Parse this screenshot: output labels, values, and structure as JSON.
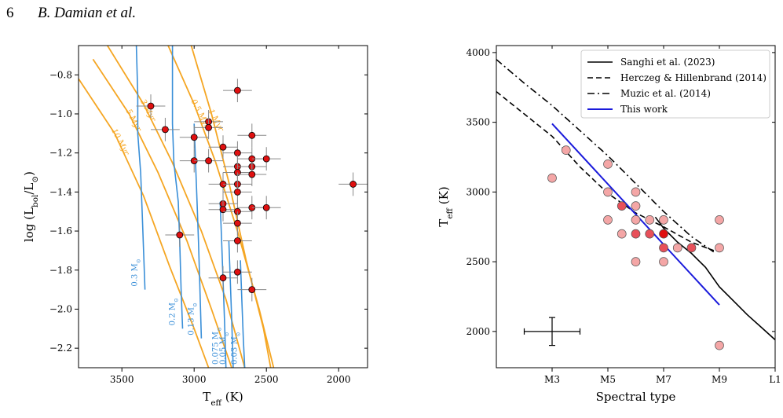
{
  "header": {
    "page_number": "6",
    "authors": "B. Damian et al."
  },
  "colors": {
    "isochrone": "#f5a623",
    "track": "#3a8fd8",
    "point": "#e01010",
    "point_light": "#f4a6a6",
    "point_mid": "#e8505a",
    "this_work": "#1a1adb"
  },
  "chart_data": [
    {
      "type": "scatter",
      "xlabel": "T_eff (K)",
      "ylabel": "log (L_bol/L_⊙)",
      "xlim": [
        3800,
        1800
      ],
      "ylim": [
        -2.3,
        -0.65
      ],
      "x_ticks": [
        3500,
        3000,
        2500,
        2000
      ],
      "y_ticks": [
        -0.8,
        -1.0,
        -1.2,
        -1.4,
        -1.6,
        -1.8,
        -2.0,
        -2.2
      ],
      "x_tick_labels": [
        "3500",
        "3000",
        "2500",
        "2000"
      ],
      "y_tick_labels": [
        "−0.8",
        "−1.0",
        "−1.2",
        "−1.4",
        "−1.6",
        "−1.8",
        "−2.0",
        "−2.2"
      ],
      "points": [
        {
          "x": 3300,
          "y": -0.96
        },
        {
          "x": 3200,
          "y": -1.08
        },
        {
          "x": 2700,
          "y": -0.88
        },
        {
          "x": 2900,
          "y": -1.04
        },
        {
          "x": 2900,
          "y": -1.07
        },
        {
          "x": 3000,
          "y": -1.12
        },
        {
          "x": 2800,
          "y": -1.17
        },
        {
          "x": 2700,
          "y": -1.2
        },
        {
          "x": 2600,
          "y": -1.11
        },
        {
          "x": 3000,
          "y": -1.24
        },
        {
          "x": 2900,
          "y": -1.24
        },
        {
          "x": 2700,
          "y": -1.27
        },
        {
          "x": 2700,
          "y": -1.3
        },
        {
          "x": 2600,
          "y": -1.27
        },
        {
          "x": 2600,
          "y": -1.23
        },
        {
          "x": 2500,
          "y": -1.23
        },
        {
          "x": 2600,
          "y": -1.31
        },
        {
          "x": 2800,
          "y": -1.36
        },
        {
          "x": 2700,
          "y": -1.36
        },
        {
          "x": 2700,
          "y": -1.4
        },
        {
          "x": 2800,
          "y": -1.46
        },
        {
          "x": 2800,
          "y": -1.49
        },
        {
          "x": 2700,
          "y": -1.5
        },
        {
          "x": 2600,
          "y": -1.48
        },
        {
          "x": 2500,
          "y": -1.48
        },
        {
          "x": 2700,
          "y": -1.56
        },
        {
          "x": 3100,
          "y": -1.62
        },
        {
          "x": 2700,
          "y": -1.65
        },
        {
          "x": 2700,
          "y": -1.81
        },
        {
          "x": 2800,
          "y": -1.84
        },
        {
          "x": 2600,
          "y": -1.9
        },
        {
          "x": 1900,
          "y": -1.36
        }
      ],
      "x_err": 100,
      "y_err": 0.06,
      "isochrones": [
        {
          "label": "0.5 Myr",
          "points": [
            [
              3180,
              -0.65
            ],
            [
              3000,
              -0.95
            ],
            [
              2850,
              -1.25
            ],
            [
              2700,
              -1.6
            ],
            [
              2550,
              -2.0
            ],
            [
              2450,
              -2.3
            ]
          ]
        },
        {
          "label": "1 Myr",
          "points": [
            [
              3020,
              -0.65
            ],
            [
              2880,
              -1.0
            ],
            [
              2760,
              -1.35
            ],
            [
              2640,
              -1.75
            ],
            [
              2520,
              -2.1
            ],
            [
              2470,
              -2.3
            ]
          ]
        },
        {
          "label": "3 Myr",
          "points": [
            [
              3600,
              -0.65
            ],
            [
              3350,
              -0.95
            ],
            [
              3150,
              -1.25
            ],
            [
              2950,
              -1.6
            ],
            [
              2780,
              -1.95
            ],
            [
              2650,
              -2.3
            ]
          ]
        },
        {
          "label": "5 Myr",
          "points": [
            [
              3700,
              -0.72
            ],
            [
              3450,
              -1.0
            ],
            [
              3250,
              -1.3
            ],
            [
              3050,
              -1.65
            ],
            [
              2880,
              -2.0
            ],
            [
              2740,
              -2.3
            ]
          ]
        },
        {
          "label": "10 Myr",
          "points": [
            [
              3800,
              -0.82
            ],
            [
              3550,
              -1.1
            ],
            [
              3350,
              -1.42
            ],
            [
              3170,
              -1.78
            ],
            [
              3000,
              -2.1
            ],
            [
              2900,
              -2.3
            ]
          ]
        }
      ],
      "tracks": [
        {
          "label": "0.3 M_⊙",
          "points": [
            [
              3400,
              -0.65
            ],
            [
              3390,
              -0.9
            ],
            [
              3390,
              -1.1
            ],
            [
              3370,
              -1.3
            ],
            [
              3360,
              -1.5
            ],
            [
              3350,
              -1.7
            ],
            [
              3340,
              -1.9
            ]
          ]
        },
        {
          "label": "0.2 M_⊙",
          "points": [
            [
              3150,
              -0.65
            ],
            [
              3150,
              -1.05
            ],
            [
              3140,
              -1.25
            ],
            [
              3110,
              -1.45
            ],
            [
              3100,
              -1.65
            ],
            [
              3090,
              -1.9
            ],
            [
              3080,
              -2.1
            ]
          ]
        },
        {
          "label": "0.13 M_⊙",
          "points": [
            [
              3000,
              -1.05
            ],
            [
              2990,
              -1.25
            ],
            [
              2980,
              -1.45
            ],
            [
              2970,
              -1.65
            ],
            [
              2960,
              -1.9
            ],
            [
              2950,
              -2.15
            ]
          ]
        },
        {
          "label": "0.075 M_⊙",
          "points": [
            [
              2820,
              -1.45
            ],
            [
              2810,
              -1.65
            ],
            [
              2800,
              -1.85
            ],
            [
              2790,
              -2.05
            ],
            [
              2780,
              -2.3
            ]
          ]
        },
        {
          "label": "0.05 M_⊙",
          "points": [
            [
              2760,
              -1.65
            ],
            [
              2750,
              -1.85
            ],
            [
              2740,
              -2.05
            ],
            [
              2730,
              -2.3
            ]
          ]
        },
        {
          "label": "0.03 M_⊙",
          "points": [
            [
              2680,
              -1.75
            ],
            [
              2670,
              -1.95
            ],
            [
              2660,
              -2.15
            ],
            [
              2650,
              -2.3
            ]
          ]
        }
      ]
    },
    {
      "type": "scatter",
      "xlabel": "Spectral type",
      "ylabel": "T_eff (K)",
      "xlim": [
        1,
        11
      ],
      "ylim": [
        1740,
        4050
      ],
      "x_ticks": [
        3,
        5,
        7,
        9,
        11
      ],
      "x_tick_labels": [
        "M3",
        "M5",
        "M7",
        "M9",
        "L1"
      ],
      "y_ticks": [
        2000,
        2500,
        3000,
        3500,
        4000
      ],
      "y_tick_labels": [
        "2000",
        "2500",
        "3000",
        "3500",
        "4000"
      ],
      "lines": [
        {
          "name": "Sanghi et al. (2023)",
          "style": "solid",
          "color": "#000000",
          "points": [
            [
              6.7,
              2820
            ],
            [
              7,
              2740
            ],
            [
              7.5,
              2640
            ],
            [
              8,
              2560
            ],
            [
              8.5,
              2460
            ],
            [
              9,
              2320
            ],
            [
              9.5,
              2220
            ],
            [
              10,
              2120
            ],
            [
              10.5,
              2030
            ],
            [
              11,
              1940
            ]
          ]
        },
        {
          "name": "Herczeg & Hillenbrand (2014)",
          "style": "dashed",
          "color": "#000000",
          "points": [
            [
              1,
              3720
            ],
            [
              2,
              3560
            ],
            [
              3,
              3400
            ],
            [
              4,
              3180
            ],
            [
              5,
              2990
            ],
            [
              6,
              2850
            ],
            [
              7,
              2750
            ],
            [
              8,
              2640
            ],
            [
              8.8,
              2580
            ]
          ]
        },
        {
          "name": "Muzic et al. (2014)",
          "style": "dashdot",
          "color": "#000000",
          "points": [
            [
              1,
              3950
            ],
            [
              2,
              3780
            ],
            [
              3,
              3620
            ],
            [
              4,
              3440
            ],
            [
              5,
              3260
            ],
            [
              6,
              3060
            ],
            [
              7,
              2860
            ],
            [
              8,
              2680
            ],
            [
              8.8,
              2570
            ]
          ]
        },
        {
          "name": "This work",
          "style": "solid",
          "color": "#1a1adb",
          "points": [
            [
              3,
              3490
            ],
            [
              9,
              2190
            ]
          ]
        }
      ],
      "points": [
        {
          "x": 3,
          "y": 3100,
          "c": "light"
        },
        {
          "x": 3.5,
          "y": 3300,
          "c": "light"
        },
        {
          "x": 5,
          "y": 3200,
          "c": "light"
        },
        {
          "x": 5,
          "y": 3000,
          "c": "light"
        },
        {
          "x": 5,
          "y": 2800,
          "c": "light"
        },
        {
          "x": 5.5,
          "y": 2900,
          "c": "mid"
        },
        {
          "x": 5.5,
          "y": 2700,
          "c": "light"
        },
        {
          "x": 6,
          "y": 3000,
          "c": "light"
        },
        {
          "x": 6,
          "y": 2900,
          "c": "light"
        },
        {
          "x": 6,
          "y": 2800,
          "c": "light"
        },
        {
          "x": 6,
          "y": 2700,
          "c": "mid"
        },
        {
          "x": 6,
          "y": 2500,
          "c": "light"
        },
        {
          "x": 6.5,
          "y": 2800,
          "c": "light"
        },
        {
          "x": 6.5,
          "y": 2700,
          "c": "mid"
        },
        {
          "x": 7,
          "y": 2800,
          "c": "light"
        },
        {
          "x": 7,
          "y": 2700,
          "c": "dark"
        },
        {
          "x": 7,
          "y": 2600,
          "c": "mid"
        },
        {
          "x": 7,
          "y": 2500,
          "c": "light"
        },
        {
          "x": 7.5,
          "y": 2600,
          "c": "light"
        },
        {
          "x": 8,
          "y": 2600,
          "c": "mid"
        },
        {
          "x": 9,
          "y": 2800,
          "c": "light"
        },
        {
          "x": 9,
          "y": 2600,
          "c": "light"
        },
        {
          "x": 9,
          "y": 1900,
          "c": "light"
        }
      ],
      "error_bar": {
        "x": 3,
        "y": 2000,
        "x_err": 1,
        "y_err": 100
      },
      "legend_placement": "top-right"
    }
  ]
}
